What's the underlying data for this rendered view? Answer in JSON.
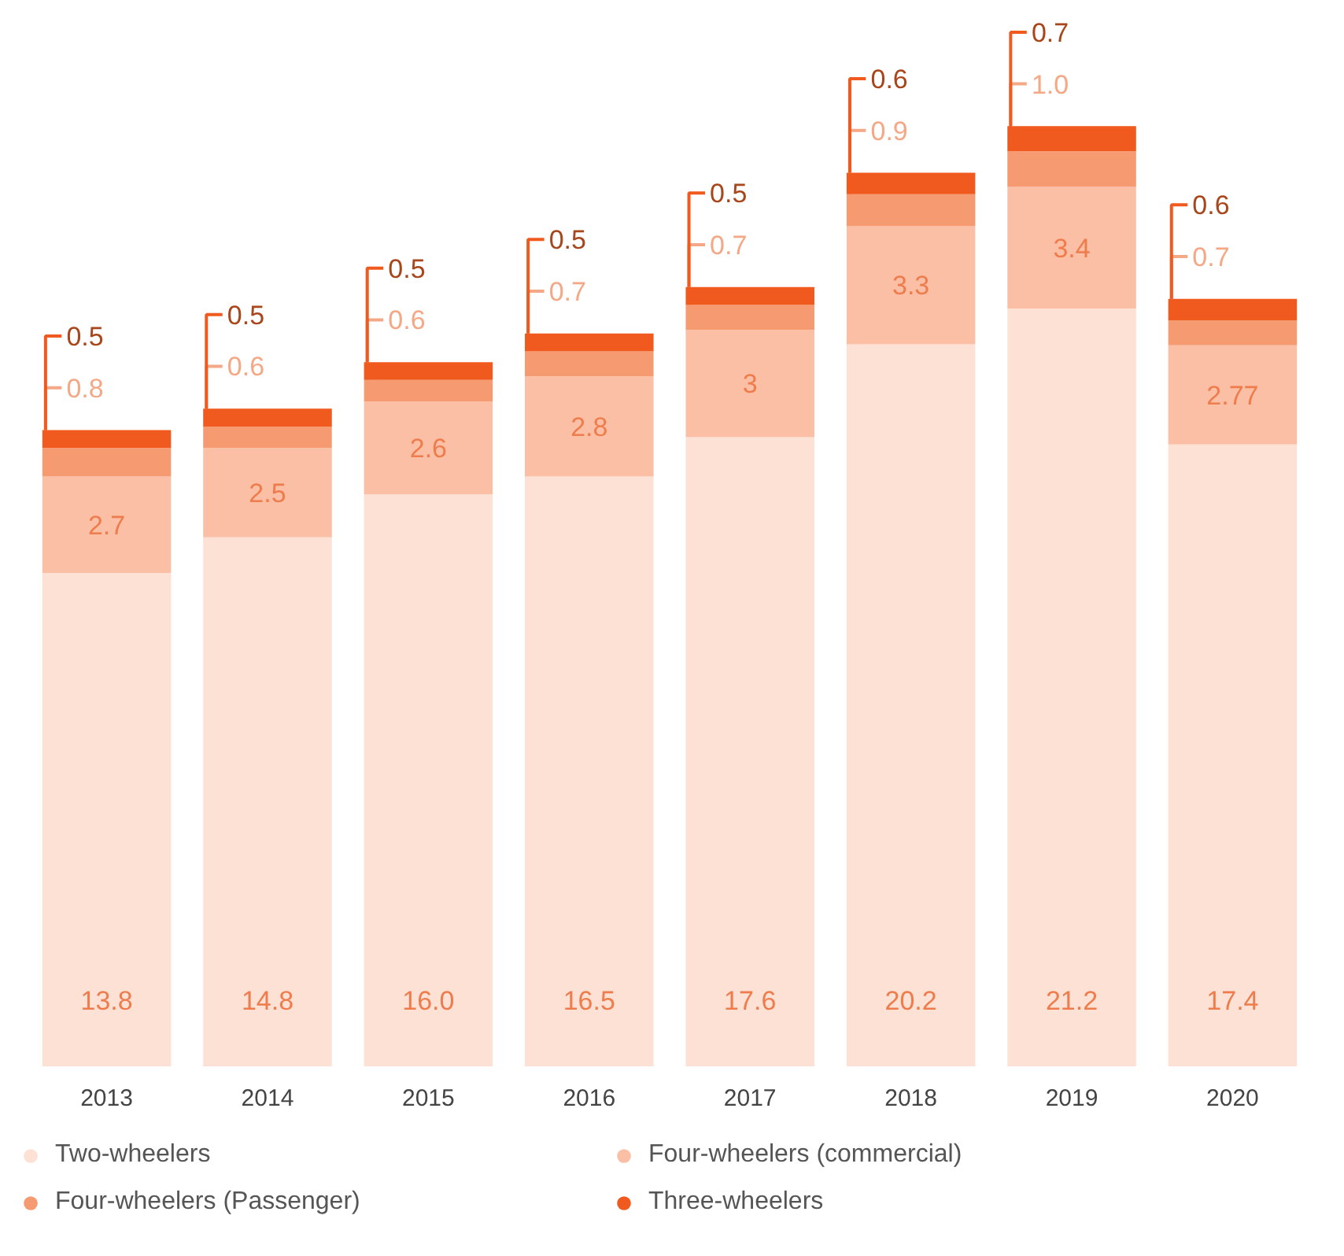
{
  "chart_data": {
    "type": "bar",
    "stacked": true,
    "data_labels": true,
    "legend": "bottom",
    "categories": [
      "2013",
      "2014",
      "2015",
      "2016",
      "2017",
      "2018",
      "2019",
      "2020"
    ],
    "series": [
      {
        "name": "Two-wheelers",
        "color": "#fde1d5",
        "values": [
          13.8,
          14.8,
          16.0,
          16.5,
          17.6,
          20.2,
          21.2,
          17.4
        ],
        "value_labels": [
          "13.8",
          "14.8",
          "16.0",
          "16.5",
          "17.6",
          "20.2",
          "21.2",
          "17.4"
        ]
      },
      {
        "name": "Four-wheelers (commercial)",
        "color": "#fbbfa5",
        "values": [
          2.7,
          2.5,
          2.6,
          2.8,
          3,
          3.3,
          3.4,
          2.77
        ],
        "value_labels": [
          "2.7",
          "2.5",
          "2.6",
          "2.8",
          "3",
          "3.3",
          "3.4",
          "2.77"
        ]
      },
      {
        "name": "Four-wheelers (Passenger)",
        "color": "#f69a72",
        "values": [
          0.8,
          0.6,
          0.6,
          0.7,
          0.7,
          0.9,
          1.0,
          0.7
        ],
        "value_labels": [
          "0.8",
          "0.6",
          "0.6",
          "0.7",
          "0.7",
          "0.9",
          "1.0",
          "0.7"
        ]
      },
      {
        "name": "Three-wheelers",
        "color": "#f15a1f",
        "values": [
          0.5,
          0.5,
          0.5,
          0.5,
          0.5,
          0.6,
          0.7,
          0.6
        ],
        "value_labels": [
          "0.5",
          "0.5",
          "0.5",
          "0.5",
          "0.5",
          "0.6",
          "0.7",
          "0.6"
        ]
      }
    ]
  }
}
